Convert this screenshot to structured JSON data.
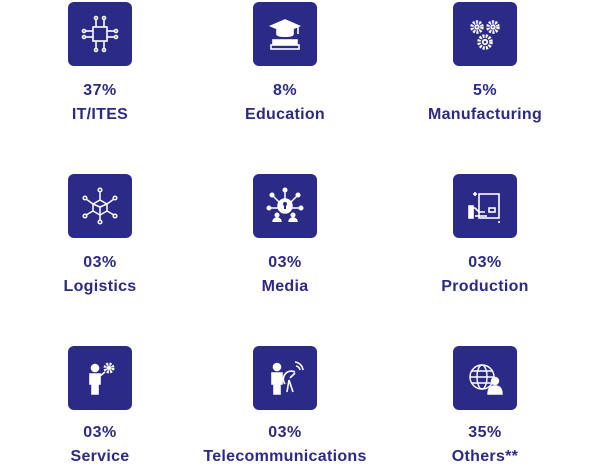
{
  "accent_color": "#2b2a87",
  "sectors": [
    {
      "percent": "37%",
      "label": "IT/ITES",
      "icon": "circuit-chip-icon"
    },
    {
      "percent": "8%",
      "label": "Education",
      "icon": "graduation-cap-books-icon"
    },
    {
      "percent": "5%",
      "label": "Manufacturing",
      "icon": "gears-icon"
    },
    {
      "percent": "03%",
      "label": "Logistics",
      "icon": "network-box-icon"
    },
    {
      "percent": "03%",
      "label": "Media",
      "icon": "media-network-icon"
    },
    {
      "percent": "03%",
      "label": "Production",
      "icon": "production-box-icon"
    },
    {
      "percent": "03%",
      "label": "Service",
      "icon": "service-person-gear-icon"
    },
    {
      "percent": "03%",
      "label": "Telecommunications",
      "icon": "satellite-dish-person-icon"
    },
    {
      "percent": "35%",
      "label": "Others**",
      "icon": "globe-person-icon"
    }
  ]
}
